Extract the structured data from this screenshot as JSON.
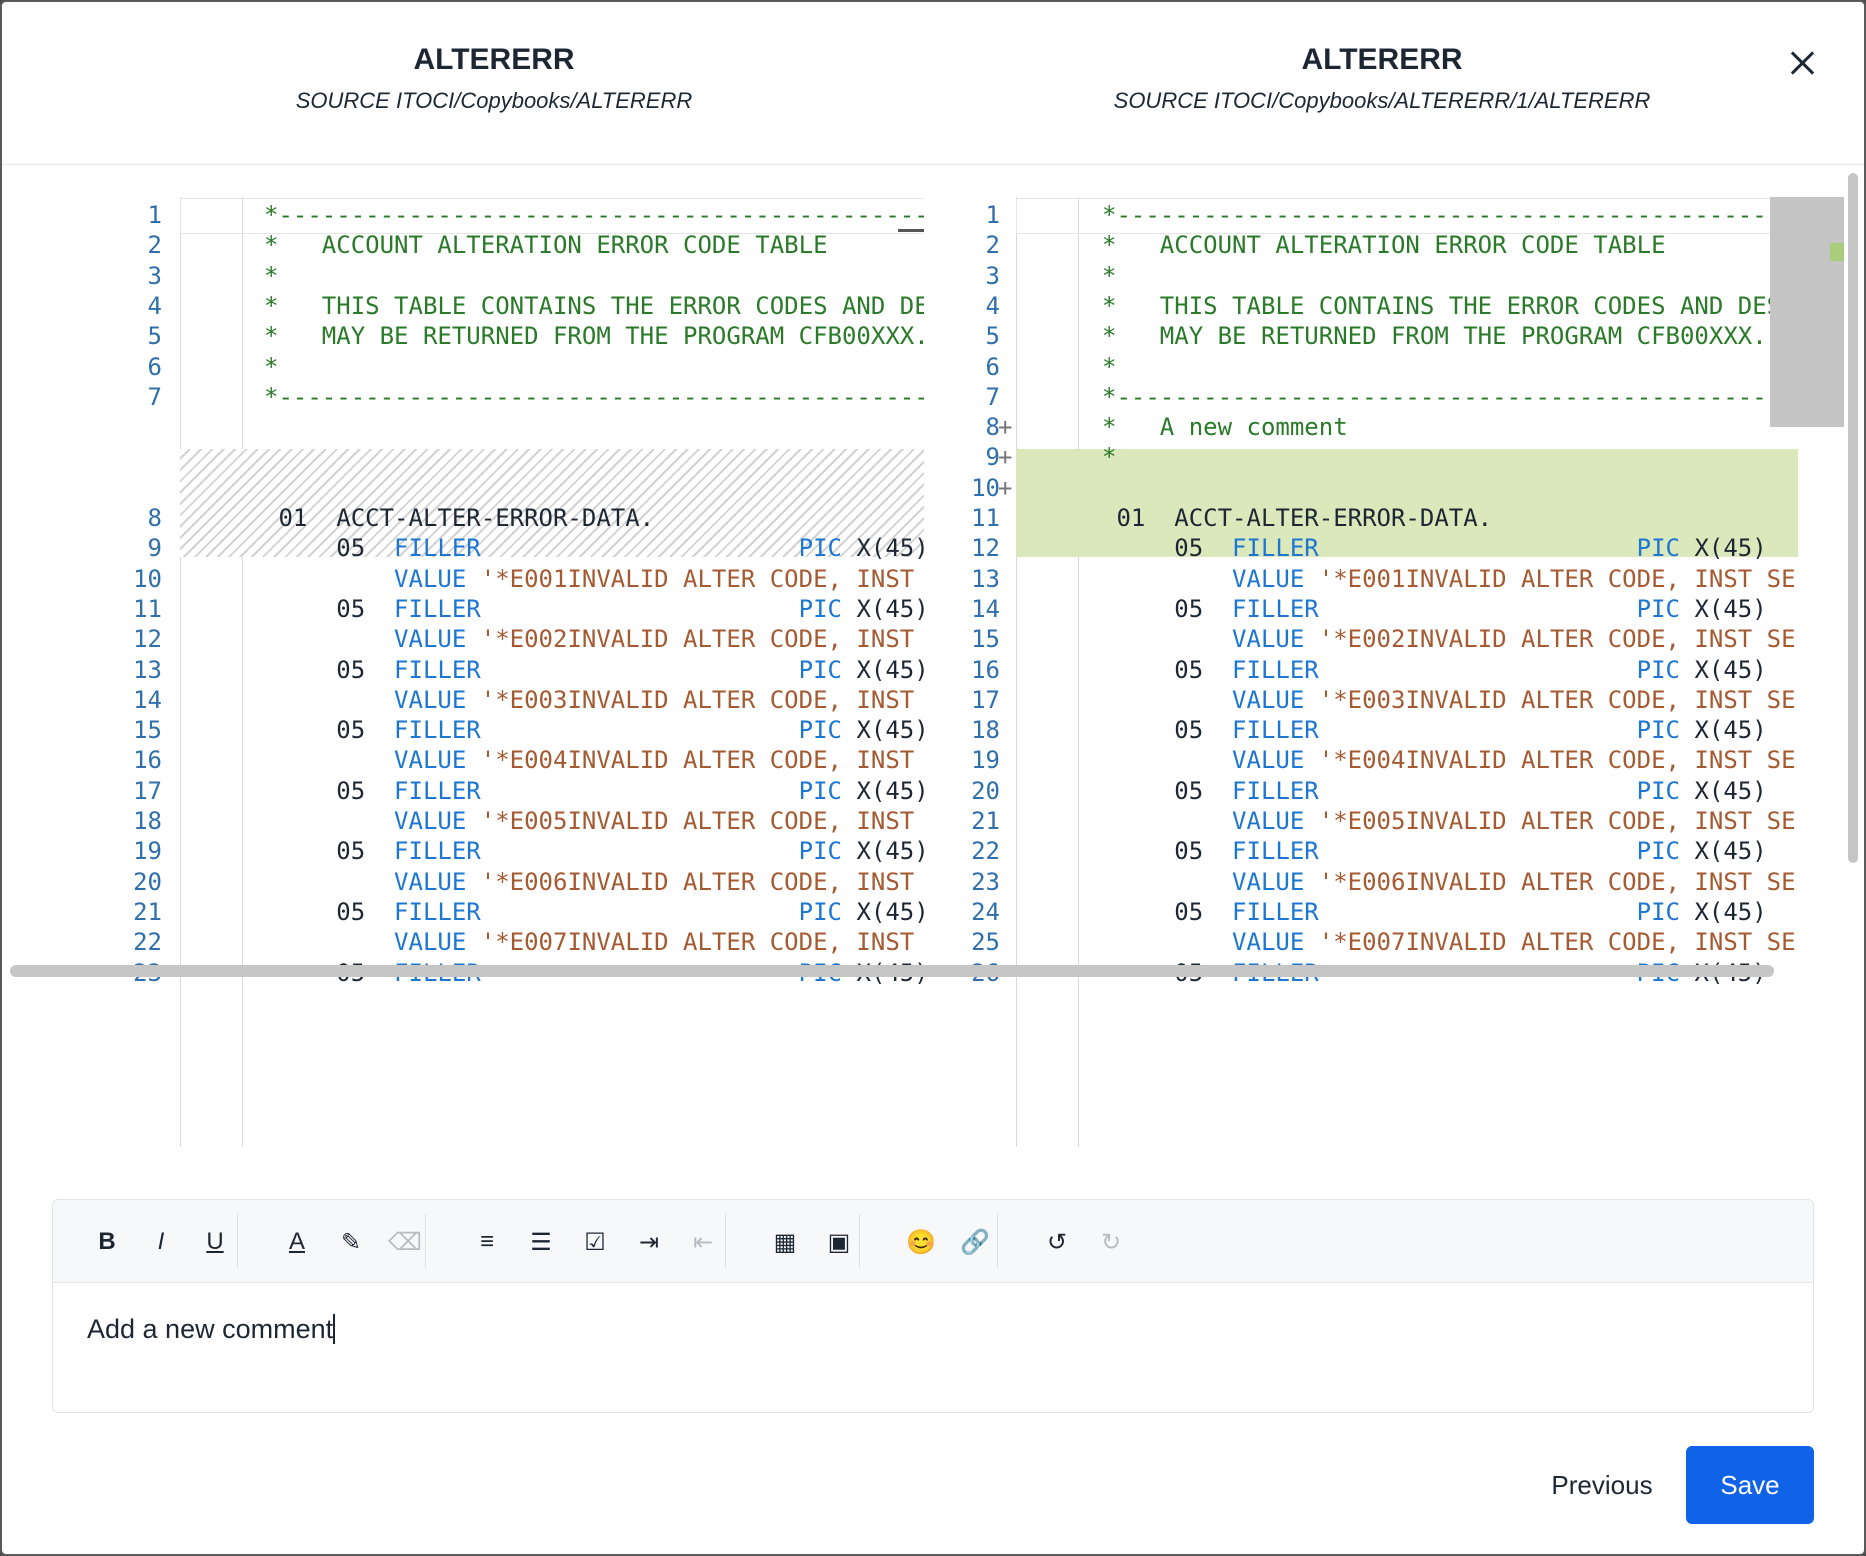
{
  "header": {
    "left": {
      "title": "ALTERERR",
      "subtitle": "SOURCE ITOCI/Copybooks/ALTERERR"
    },
    "right": {
      "title": "ALTERERR",
      "subtitle": "SOURCE ITOCI/Copybooks/ALTERERR/1/ALTERERR"
    },
    "close_icon": "close-icon"
  },
  "left_lines": [
    {
      "n": "1",
      "segs": [
        {
          "c": "cmt",
          "t": "*---------------------------------------------------"
        }
      ]
    },
    {
      "n": "2",
      "segs": [
        {
          "c": "cmt",
          "t": "*   ACCOUNT ALTERATION ERROR CODE TABLE"
        }
      ]
    },
    {
      "n": "3",
      "segs": [
        {
          "c": "cmt",
          "t": "*"
        }
      ]
    },
    {
      "n": "4",
      "segs": [
        {
          "c": "cmt",
          "t": "*   THIS TABLE CONTAINS THE ERROR CODES AND DE"
        }
      ]
    },
    {
      "n": "5",
      "segs": [
        {
          "c": "cmt",
          "t": "*   MAY BE RETURNED FROM THE PROGRAM CFB00XXX."
        }
      ]
    },
    {
      "n": "6",
      "segs": [
        {
          "c": "cmt",
          "t": "*"
        }
      ]
    },
    {
      "n": "7",
      "segs": [
        {
          "c": "cmt",
          "t": "*---------------------------------------------------"
        }
      ]
    },
    {
      "n": "8",
      "segs": [
        {
          "c": "",
          "t": " 01  ACCT-ALTER-ERROR-DATA."
        }
      ]
    },
    {
      "n": "9",
      "segs": [
        {
          "c": "",
          "t": "     05  "
        },
        {
          "c": "kw",
          "t": "FILLER"
        },
        {
          "c": "",
          "t": "                      "
        },
        {
          "c": "kw",
          "t": "PIC"
        },
        {
          "c": "",
          "t": " X(45)"
        }
      ]
    },
    {
      "n": "10",
      "segs": [
        {
          "c": "",
          "t": "         "
        },
        {
          "c": "kw",
          "t": "VALUE"
        },
        {
          "c": "str",
          "t": " '*E001INVALID ALTER CODE, INST"
        }
      ]
    },
    {
      "n": "11",
      "segs": [
        {
          "c": "",
          "t": "     05  "
        },
        {
          "c": "kw",
          "t": "FILLER"
        },
        {
          "c": "",
          "t": "                      "
        },
        {
          "c": "kw",
          "t": "PIC"
        },
        {
          "c": "",
          "t": " X(45)"
        }
      ]
    },
    {
      "n": "12",
      "segs": [
        {
          "c": "",
          "t": "         "
        },
        {
          "c": "kw",
          "t": "VALUE"
        },
        {
          "c": "str",
          "t": " '*E002INVALID ALTER CODE, INST"
        }
      ]
    },
    {
      "n": "13",
      "segs": [
        {
          "c": "",
          "t": "     05  "
        },
        {
          "c": "kw",
          "t": "FILLER"
        },
        {
          "c": "",
          "t": "                      "
        },
        {
          "c": "kw",
          "t": "PIC"
        },
        {
          "c": "",
          "t": " X(45)"
        }
      ]
    },
    {
      "n": "14",
      "segs": [
        {
          "c": "",
          "t": "         "
        },
        {
          "c": "kw",
          "t": "VALUE"
        },
        {
          "c": "str",
          "t": " '*E003INVALID ALTER CODE, INST"
        }
      ]
    },
    {
      "n": "15",
      "segs": [
        {
          "c": "",
          "t": "     05  "
        },
        {
          "c": "kw",
          "t": "FILLER"
        },
        {
          "c": "",
          "t": "                      "
        },
        {
          "c": "kw",
          "t": "PIC"
        },
        {
          "c": "",
          "t": " X(45)"
        }
      ]
    },
    {
      "n": "16",
      "segs": [
        {
          "c": "",
          "t": "         "
        },
        {
          "c": "kw",
          "t": "VALUE"
        },
        {
          "c": "str",
          "t": " '*E004INVALID ALTER CODE, INST"
        }
      ]
    },
    {
      "n": "17",
      "segs": [
        {
          "c": "",
          "t": "     05  "
        },
        {
          "c": "kw",
          "t": "FILLER"
        },
        {
          "c": "",
          "t": "                      "
        },
        {
          "c": "kw",
          "t": "PIC"
        },
        {
          "c": "",
          "t": " X(45)"
        }
      ]
    },
    {
      "n": "18",
      "segs": [
        {
          "c": "",
          "t": "         "
        },
        {
          "c": "kw",
          "t": "VALUE"
        },
        {
          "c": "str",
          "t": " '*E005INVALID ALTER CODE, INST"
        }
      ]
    },
    {
      "n": "19",
      "segs": [
        {
          "c": "",
          "t": "     05  "
        },
        {
          "c": "kw",
          "t": "FILLER"
        },
        {
          "c": "",
          "t": "                      "
        },
        {
          "c": "kw",
          "t": "PIC"
        },
        {
          "c": "",
          "t": " X(45)"
        }
      ]
    },
    {
      "n": "20",
      "segs": [
        {
          "c": "",
          "t": "         "
        },
        {
          "c": "kw",
          "t": "VALUE"
        },
        {
          "c": "str",
          "t": " '*E006INVALID ALTER CODE, INST"
        }
      ]
    },
    {
      "n": "21",
      "segs": [
        {
          "c": "",
          "t": "     05  "
        },
        {
          "c": "kw",
          "t": "FILLER"
        },
        {
          "c": "",
          "t": "                      "
        },
        {
          "c": "kw",
          "t": "PIC"
        },
        {
          "c": "",
          "t": " X(45)"
        }
      ]
    },
    {
      "n": "22",
      "segs": [
        {
          "c": "",
          "t": "         "
        },
        {
          "c": "kw",
          "t": "VALUE"
        },
        {
          "c": "str",
          "t": " '*E007INVALID ALTER CODE, INST"
        }
      ]
    },
    {
      "n": "23",
      "segs": [
        {
          "c": "",
          "t": "     05  "
        },
        {
          "c": "kw",
          "t": "FILLER"
        },
        {
          "c": "",
          "t": "                      "
        },
        {
          "c": "kw",
          "t": "PIC"
        },
        {
          "c": "",
          "t": " X(45)"
        }
      ]
    }
  ],
  "right_lines": [
    {
      "n": "1",
      "segs": [
        {
          "c": "cmt",
          "t": "*---------------------------------------------------"
        }
      ]
    },
    {
      "n": "2",
      "segs": [
        {
          "c": "cmt",
          "t": "*   ACCOUNT ALTERATION ERROR CODE TABLE"
        }
      ]
    },
    {
      "n": "3",
      "segs": [
        {
          "c": "cmt",
          "t": "*"
        }
      ]
    },
    {
      "n": "4",
      "segs": [
        {
          "c": "cmt",
          "t": "*   THIS TABLE CONTAINS THE ERROR CODES AND DESC"
        }
      ]
    },
    {
      "n": "5",
      "segs": [
        {
          "c": "cmt",
          "t": "*   MAY BE RETURNED FROM THE PROGRAM CFB00XXX."
        }
      ]
    },
    {
      "n": "6",
      "segs": [
        {
          "c": "cmt",
          "t": "*"
        }
      ]
    },
    {
      "n": "7",
      "segs": [
        {
          "c": "cmt",
          "t": "*---------------------------------------------------"
        }
      ]
    },
    {
      "n": "8",
      "added": true,
      "segs": [
        {
          "c": "cmt",
          "t": "*   A new comment"
        }
      ]
    },
    {
      "n": "9",
      "added": true,
      "segs": [
        {
          "c": "cmt",
          "t": "*"
        }
      ]
    },
    {
      "n": "10",
      "added": true,
      "segs": [
        {
          "c": "",
          "t": ""
        }
      ]
    },
    {
      "n": "11",
      "segs": [
        {
          "c": "",
          "t": " 01  ACCT-ALTER-ERROR-DATA."
        }
      ]
    },
    {
      "n": "12",
      "segs": [
        {
          "c": "",
          "t": "     05  "
        },
        {
          "c": "kw",
          "t": "FILLER"
        },
        {
          "c": "",
          "t": "                      "
        },
        {
          "c": "kw",
          "t": "PIC"
        },
        {
          "c": "",
          "t": " X(45)"
        }
      ]
    },
    {
      "n": "13",
      "segs": [
        {
          "c": "",
          "t": "         "
        },
        {
          "c": "kw",
          "t": "VALUE"
        },
        {
          "c": "str",
          "t": " '*E001INVALID ALTER CODE, INST SE"
        }
      ]
    },
    {
      "n": "14",
      "segs": [
        {
          "c": "",
          "t": "     05  "
        },
        {
          "c": "kw",
          "t": "FILLER"
        },
        {
          "c": "",
          "t": "                      "
        },
        {
          "c": "kw",
          "t": "PIC"
        },
        {
          "c": "",
          "t": " X(45)"
        }
      ]
    },
    {
      "n": "15",
      "segs": [
        {
          "c": "",
          "t": "         "
        },
        {
          "c": "kw",
          "t": "VALUE"
        },
        {
          "c": "str",
          "t": " '*E002INVALID ALTER CODE, INST SE"
        }
      ]
    },
    {
      "n": "16",
      "segs": [
        {
          "c": "",
          "t": "     05  "
        },
        {
          "c": "kw",
          "t": "FILLER"
        },
        {
          "c": "",
          "t": "                      "
        },
        {
          "c": "kw",
          "t": "PIC"
        },
        {
          "c": "",
          "t": " X(45)"
        }
      ]
    },
    {
      "n": "17",
      "segs": [
        {
          "c": "",
          "t": "         "
        },
        {
          "c": "kw",
          "t": "VALUE"
        },
        {
          "c": "str",
          "t": " '*E003INVALID ALTER CODE, INST SE"
        }
      ]
    },
    {
      "n": "18",
      "segs": [
        {
          "c": "",
          "t": "     05  "
        },
        {
          "c": "kw",
          "t": "FILLER"
        },
        {
          "c": "",
          "t": "                      "
        },
        {
          "c": "kw",
          "t": "PIC"
        },
        {
          "c": "",
          "t": " X(45)"
        }
      ]
    },
    {
      "n": "19",
      "segs": [
        {
          "c": "",
          "t": "         "
        },
        {
          "c": "kw",
          "t": "VALUE"
        },
        {
          "c": "str",
          "t": " '*E004INVALID ALTER CODE, INST SE"
        }
      ]
    },
    {
      "n": "20",
      "segs": [
        {
          "c": "",
          "t": "     05  "
        },
        {
          "c": "kw",
          "t": "FILLER"
        },
        {
          "c": "",
          "t": "                      "
        },
        {
          "c": "kw",
          "t": "PIC"
        },
        {
          "c": "",
          "t": " X(45)"
        }
      ]
    },
    {
      "n": "21",
      "segs": [
        {
          "c": "",
          "t": "         "
        },
        {
          "c": "kw",
          "t": "VALUE"
        },
        {
          "c": "str",
          "t": " '*E005INVALID ALTER CODE, INST SE"
        }
      ]
    },
    {
      "n": "22",
      "segs": [
        {
          "c": "",
          "t": "     05  "
        },
        {
          "c": "kw",
          "t": "FILLER"
        },
        {
          "c": "",
          "t": "                      "
        },
        {
          "c": "kw",
          "t": "PIC"
        },
        {
          "c": "",
          "t": " X(45)"
        }
      ]
    },
    {
      "n": "23",
      "segs": [
        {
          "c": "",
          "t": "         "
        },
        {
          "c": "kw",
          "t": "VALUE"
        },
        {
          "c": "str",
          "t": " '*E006INVALID ALTER CODE, INST SE"
        }
      ]
    },
    {
      "n": "24",
      "segs": [
        {
          "c": "",
          "t": "     05  "
        },
        {
          "c": "kw",
          "t": "FILLER"
        },
        {
          "c": "",
          "t": "                      "
        },
        {
          "c": "kw",
          "t": "PIC"
        },
        {
          "c": "",
          "t": " X(45)"
        }
      ]
    },
    {
      "n": "25",
      "segs": [
        {
          "c": "",
          "t": "         "
        },
        {
          "c": "kw",
          "t": "VALUE"
        },
        {
          "c": "str",
          "t": " '*E007INVALID ALTER CODE, INST SE"
        }
      ]
    },
    {
      "n": "26",
      "segs": [
        {
          "c": "",
          "t": "     05  "
        },
        {
          "c": "kw",
          "t": "FILLER"
        },
        {
          "c": "",
          "t": "                      "
        },
        {
          "c": "kw",
          "t": "PIC"
        },
        {
          "c": "",
          "t": " X(45)"
        }
      ]
    }
  ],
  "toolbar": {
    "buttons": [
      {
        "name": "bold-icon",
        "glyph": "B",
        "disabled": false
      },
      {
        "name": "italic-icon",
        "glyph": "I",
        "disabled": false
      },
      {
        "name": "underline-icon",
        "glyph": "U",
        "disabled": false
      },
      {
        "name": "text-color-icon",
        "glyph": "A",
        "disabled": false
      },
      {
        "name": "highlighter-icon",
        "glyph": "✎",
        "disabled": false
      },
      {
        "name": "eraser-icon",
        "glyph": "⌫",
        "disabled": true
      },
      {
        "name": "ordered-list-icon",
        "glyph": "≡",
        "disabled": false
      },
      {
        "name": "bullet-list-icon",
        "glyph": "☰",
        "disabled": false
      },
      {
        "name": "checklist-icon",
        "glyph": "☑",
        "disabled": false
      },
      {
        "name": "indent-icon",
        "glyph": "⇥",
        "disabled": false
      },
      {
        "name": "outdent-icon",
        "glyph": "⇤",
        "disabled": true
      },
      {
        "name": "table-icon",
        "glyph": "▦",
        "disabled": false
      },
      {
        "name": "image-icon",
        "glyph": "▣",
        "disabled": false
      },
      {
        "name": "emoji-icon",
        "glyph": "😊",
        "disabled": false
      },
      {
        "name": "link-icon",
        "glyph": "🔗",
        "disabled": false
      },
      {
        "name": "undo-icon",
        "glyph": "↺",
        "disabled": false
      },
      {
        "name": "redo-icon",
        "glyph": "↻",
        "disabled": true
      }
    ]
  },
  "editor": {
    "content": "Add a new comment"
  },
  "footer": {
    "previous_label": "Previous",
    "save_label": "Save"
  },
  "colors": {
    "accent": "#1062e6",
    "added_bg": "#dae8bb",
    "comment": "#2a7a2a",
    "keyword": "#1c76d2",
    "string": "#a55a32",
    "line_number": "#2f6fab"
  }
}
